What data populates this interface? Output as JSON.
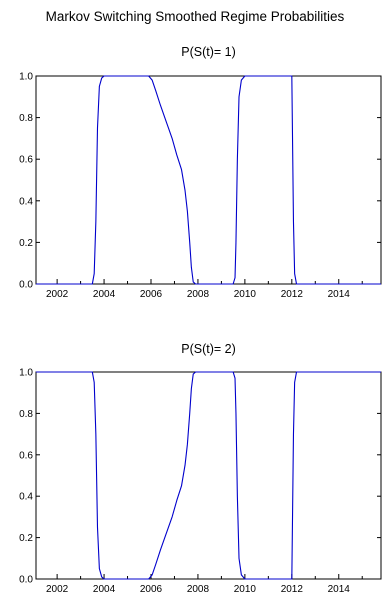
{
  "page": {
    "title": "Markov Switching Smoothed Regime Probabilities"
  },
  "colors": {
    "line": "#0000cc",
    "axis": "#000000",
    "background": "#ffffff"
  },
  "chart_data": [
    {
      "type": "line",
      "title": "P(S(t)= 1)",
      "xlabel": "",
      "ylabel": "",
      "xlim": [
        2001.1,
        2015.8
      ],
      "ylim": [
        0.0,
        1.0
      ],
      "x_ticks": [
        2002,
        2004,
        2006,
        2008,
        2010,
        2012,
        2014
      ],
      "y_ticks": [
        0.0,
        0.2,
        0.4,
        0.6,
        0.8,
        1.0
      ],
      "y_tick_labels": [
        "0.0",
        "0.2",
        "0.4",
        "0.6",
        "0.8",
        "1.0"
      ],
      "grid": false,
      "legend": "none",
      "series": [
        {
          "x": [
            2001.1,
            2003.5,
            2003.58,
            2003.65,
            2003.72,
            2003.8,
            2003.9,
            2004.0,
            2004.3,
            2005.0,
            2005.9,
            2006.05,
            2006.2,
            2006.4,
            2006.65,
            2006.9,
            2007.1,
            2007.3,
            2007.45,
            2007.55,
            2007.65,
            2007.72,
            2007.8,
            2007.9,
            2009.5,
            2009.58,
            2009.62,
            2009.68,
            2009.75,
            2009.85,
            2010.0,
            2010.3,
            2011.0,
            2011.8,
            2012.0,
            2012.02,
            2012.07,
            2012.12,
            2012.2,
            2015.8
          ],
          "y": [
            0.0,
            0.0,
            0.05,
            0.3,
            0.75,
            0.95,
            0.99,
            1.0,
            1.0,
            1.0,
            1.0,
            0.98,
            0.93,
            0.86,
            0.78,
            0.7,
            0.62,
            0.55,
            0.45,
            0.35,
            0.2,
            0.08,
            0.01,
            0.0,
            0.0,
            0.03,
            0.2,
            0.6,
            0.9,
            0.98,
            1.0,
            1.0,
            1.0,
            1.0,
            1.0,
            0.8,
            0.3,
            0.05,
            0.0,
            0.0
          ]
        }
      ]
    },
    {
      "type": "line",
      "title": "P(S(t)= 2)",
      "xlabel": "",
      "ylabel": "",
      "xlim": [
        2001.1,
        2015.8
      ],
      "ylim": [
        0.0,
        1.0
      ],
      "x_ticks": [
        2002,
        2004,
        2006,
        2008,
        2010,
        2012,
        2014
      ],
      "y_ticks": [
        0.0,
        0.2,
        0.4,
        0.6,
        0.8,
        1.0
      ],
      "y_tick_labels": [
        "0.0",
        "0.2",
        "0.4",
        "0.6",
        "0.8",
        "1.0"
      ],
      "grid": false,
      "legend": "none",
      "series": [
        {
          "x": [
            2001.1,
            2003.5,
            2003.58,
            2003.65,
            2003.72,
            2003.8,
            2003.9,
            2004.0,
            2004.3,
            2005.0,
            2005.9,
            2006.05,
            2006.2,
            2006.4,
            2006.65,
            2006.9,
            2007.1,
            2007.3,
            2007.45,
            2007.55,
            2007.65,
            2007.72,
            2007.8,
            2007.9,
            2009.5,
            2009.58,
            2009.62,
            2009.68,
            2009.75,
            2009.85,
            2010.0,
            2010.3,
            2011.0,
            2011.8,
            2012.0,
            2012.02,
            2012.07,
            2012.12,
            2012.2,
            2015.8
          ],
          "y": [
            1.0,
            1.0,
            0.95,
            0.7,
            0.25,
            0.05,
            0.01,
            0.0,
            0.0,
            0.0,
            0.0,
            0.02,
            0.07,
            0.14,
            0.22,
            0.3,
            0.38,
            0.45,
            0.55,
            0.65,
            0.8,
            0.92,
            0.99,
            1.0,
            1.0,
            0.97,
            0.8,
            0.4,
            0.1,
            0.02,
            0.0,
            0.0,
            0.0,
            0.0,
            0.0,
            0.2,
            0.7,
            0.95,
            1.0,
            1.0
          ]
        }
      ]
    }
  ]
}
